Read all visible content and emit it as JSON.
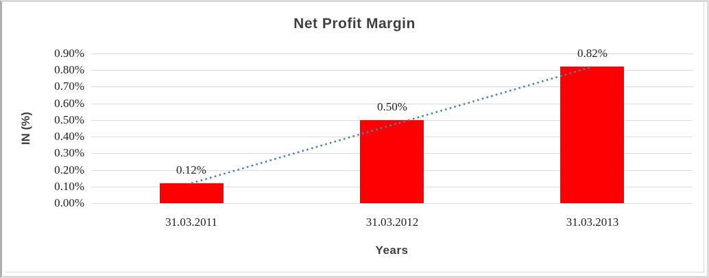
{
  "chart_data": {
    "type": "bar",
    "title": "Net Profit Margin",
    "xlabel": "Years",
    "ylabel": "IN (%)",
    "categories": [
      "31.03.2011",
      "31.03.2012",
      "31.03.2013"
    ],
    "series": [
      {
        "name": "Net Profit Margin",
        "values": [
          0.12,
          0.5,
          0.82
        ]
      }
    ],
    "data_labels": [
      "0.12%",
      "0.50%",
      "0.82%"
    ],
    "y_axis": {
      "min": 0,
      "max": 0.9,
      "tick_step": 0.1,
      "tick_values": [
        0,
        0.1,
        0.2,
        0.3,
        0.4,
        0.5,
        0.6,
        0.7,
        0.8,
        0.9
      ],
      "tick_labels": [
        "0.00%",
        "0.10%",
        "0.20%",
        "0.30%",
        "0.40%",
        "0.50%",
        "0.60%",
        "0.70%",
        "0.80%",
        "0.90%"
      ]
    },
    "trendline": {
      "type": "linear",
      "style": "dotted",
      "from_label": "0.12%",
      "to_label": "0.82%"
    },
    "legend": "none",
    "grid": "horizontal",
    "colors": {
      "bar": "#FF0000",
      "trendline": "#4A81BD",
      "gridline": "#D9D9D9",
      "title": "#3F3F3F",
      "axis_title": "#404040",
      "tick_text": "#1F1F1F",
      "chart_border": "#D9D9D9"
    }
  }
}
